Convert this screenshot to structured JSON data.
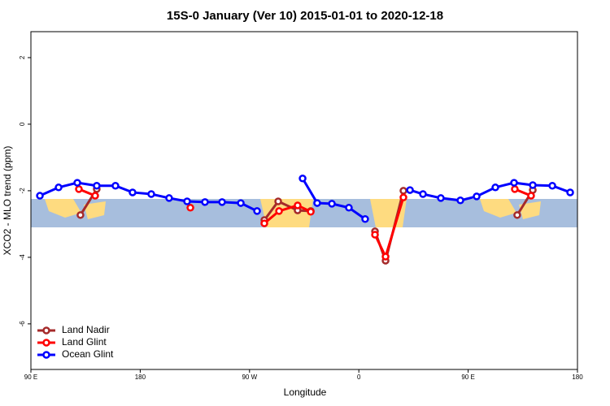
{
  "chart_data": {
    "type": "line",
    "title": "15S-0 January (Ver 10)   2015-01-01 to 2020-12-18",
    "x_label": "Longitude",
    "y_label": "XCO2 - MLO trend (ppm)",
    "xlim": [
      90,
      540
    ],
    "ylim": [
      -7.37,
      2.78
    ],
    "xticks": [
      {
        "value": 90,
        "label": "90 E"
      },
      180,
      {
        "value": 270,
        "label": "90 W"
      },
      {
        "value": 360,
        "label": "0"
      },
      {
        "value": 450,
        "label": "90 E"
      },
      {
        "value": 540,
        "label": "180"
      }
    ],
    "yticks": [
      -6,
      -4,
      -2,
      0,
      2
    ],
    "legend": "bottom-left",
    "series": [
      {
        "name": "Land Nadir",
        "color": "#a52a2a",
        "x": [
          130.8,
          144.2,
          213,
          282.2,
          293.6,
          309.6,
          320.4,
          345,
          373.3,
          382.0,
          396.7,
          440,
          490.4,
          503.2
        ],
        "values": [
          -2.73,
          -1.95,
          null,
          -2.88,
          -2.32,
          -2.59,
          -2.61,
          null,
          -3.22,
          -4.1,
          -2.0,
          null,
          -2.73,
          -1.98
        ]
      },
      {
        "name": "Land Glint",
        "color": "#ff0000",
        "x": [
          129.5,
          142.9,
          180,
          221.3,
          250,
          282.2,
          294.3,
          309.6,
          320.4,
          345,
          373.3,
          382.0,
          396.7,
          440,
          488.4,
          501.8
        ],
        "values": [
          -1.95,
          -2.15,
          null,
          -2.51,
          null,
          -2.98,
          -2.61,
          -2.44,
          -2.63,
          null,
          -3.32,
          -3.98,
          -2.2,
          null,
          -1.95,
          -2.15
        ]
      },
      {
        "name": "Ocean Glint",
        "color": "#0000ff",
        "x": [
          97.4,
          112.8,
          128.2,
          144.2,
          159.6,
          173.7,
          189.1,
          203.8,
          218.6,
          233.3,
          247.4,
          262.8,
          276.2,
          295,
          313.7,
          325.7,
          337.8,
          351.8,
          365.2,
          385,
          402.1,
          412.8,
          427.5,
          443.6,
          457.0,
          472.4,
          487.8,
          503.2,
          519.3,
          534.0
        ],
        "values": [
          -2.15,
          -1.9,
          -1.76,
          -1.85,
          -1.85,
          -2.05,
          -2.1,
          -2.22,
          -2.32,
          -2.34,
          -2.34,
          -2.37,
          -2.61,
          null,
          -1.63,
          -2.37,
          -2.39,
          -2.51,
          -2.85,
          null,
          -1.98,
          -2.1,
          -2.22,
          -2.29,
          -2.17,
          -1.9,
          -1.76,
          -1.83,
          -1.85,
          -2.05
        ]
      }
    ]
  }
}
